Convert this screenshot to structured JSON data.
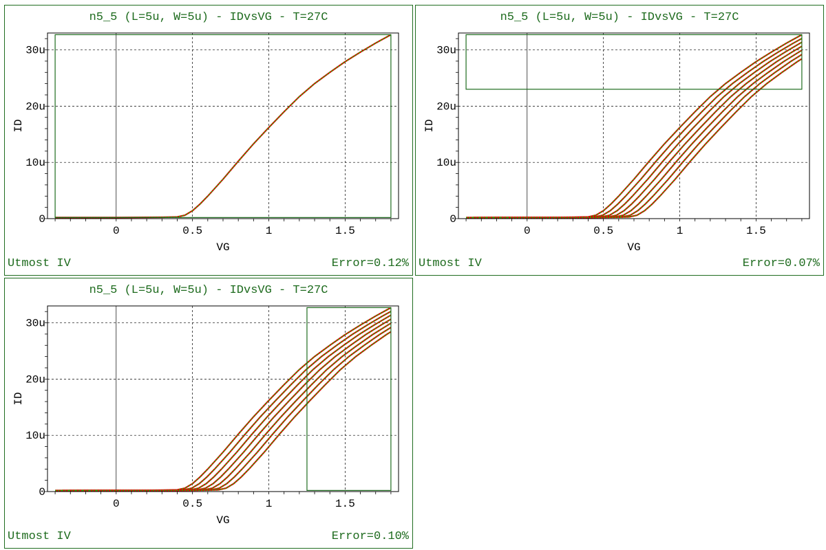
{
  "colors": {
    "frame": "#1e6b1e",
    "text_green": "#1e6b1e",
    "curve_measured": "#e00000",
    "curve_model": "#22bb00",
    "grid": "#000000"
  },
  "chart_data": [
    {
      "type": "line",
      "title": "n5_5 (L=5u, W=5u) - IDvsVG - T=27C",
      "xlabel": "VG",
      "ylabel": "ID",
      "xlim": [
        -0.45,
        1.85
      ],
      "ylim": [
        0,
        33
      ],
      "x_ticks": [
        0,
        0.5,
        1,
        1.5
      ],
      "x_tick_labels": [
        "0",
        "0.5",
        "1",
        "1.5"
      ],
      "y_ticks": [
        0,
        10,
        20,
        30
      ],
      "y_tick_labels": [
        "0",
        "10u",
        "20u",
        "30u"
      ],
      "y_unit_note": "microamps",
      "grid": true,
      "model_label": "Utmost IV",
      "error_label": "Error=0.12%",
      "highlight_box": {
        "x0": -0.4,
        "x1": 1.8,
        "y0": 0.2,
        "y1": 32.7
      },
      "series": [
        {
          "x": [
            -0.4,
            0.0,
            0.3,
            0.4,
            0.45,
            0.5,
            0.55,
            0.6,
            0.7,
            0.8,
            0.9,
            1.0,
            1.1,
            1.2,
            1.3,
            1.4,
            1.5,
            1.6,
            1.7,
            1.8
          ],
          "y": [
            0.2,
            0.2,
            0.25,
            0.3,
            0.6,
            1.4,
            2.6,
            4.0,
            7.0,
            10.2,
            13.3,
            16.2,
            19.0,
            21.7,
            24.0,
            26.0,
            27.9,
            29.6,
            31.2,
            32.7
          ]
        }
      ]
    },
    {
      "type": "line",
      "title": "n5_5 (L=5u, W=5u) - IDvsVG - T=27C",
      "xlabel": "VG",
      "ylabel": "ID",
      "xlim": [
        -0.45,
        1.85
      ],
      "ylim": [
        0,
        33
      ],
      "x_ticks": [
        0,
        0.5,
        1,
        1.5
      ],
      "x_tick_labels": [
        "0",
        "0.5",
        "1",
        "1.5"
      ],
      "y_ticks": [
        0,
        10,
        20,
        30
      ],
      "y_tick_labels": [
        "0",
        "10u",
        "20u",
        "30u"
      ],
      "grid": true,
      "model_label": "Utmost IV",
      "error_label": "Error=0.07%",
      "highlight_box": {
        "x0": -0.4,
        "x1": 1.8,
        "y0": 23.0,
        "y1": 32.7
      },
      "curve_family": {
        "vt_shift_step": 0.045,
        "count": 7
      },
      "series": []
    },
    {
      "type": "line",
      "title": "n5_5 (L=5u, W=5u) - IDvsVG - T=27C",
      "xlabel": "VG",
      "ylabel": "ID",
      "xlim": [
        -0.45,
        1.85
      ],
      "ylim": [
        0,
        33
      ],
      "x_ticks": [
        0,
        0.5,
        1,
        1.5
      ],
      "x_tick_labels": [
        "0",
        "0.5",
        "1",
        "1.5"
      ],
      "y_ticks": [
        0,
        10,
        20,
        30
      ],
      "y_tick_labels": [
        "0",
        "10u",
        "20u",
        "30u"
      ],
      "grid": true,
      "model_label": "Utmost IV",
      "error_label": "Error=0.10%",
      "highlight_box": {
        "x0": 1.25,
        "x1": 1.8,
        "y0": 0.2,
        "y1": 32.7
      },
      "curve_family": {
        "vt_shift_step": 0.045,
        "count": 7
      },
      "series": []
    }
  ]
}
